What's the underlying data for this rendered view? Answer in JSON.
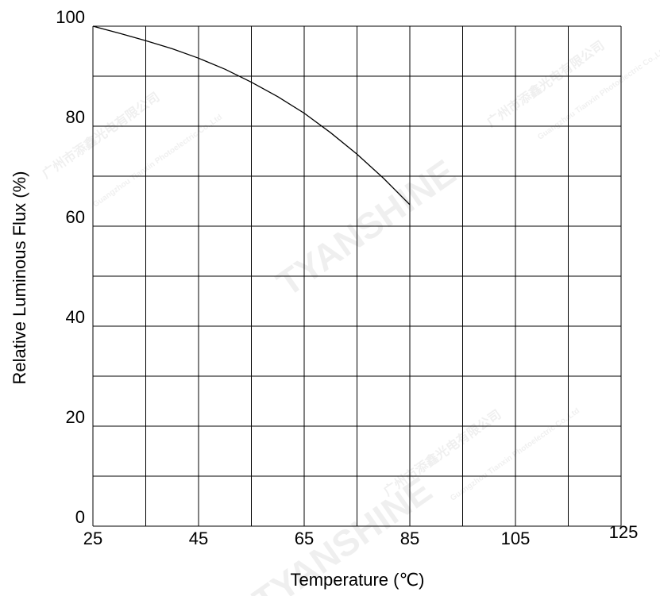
{
  "chart_data": {
    "type": "line",
    "title": "",
    "xlabel": "Temperature (℃)",
    "ylabel": "Relative Luminous Flux (%)",
    "xlim": [
      25,
      125
    ],
    "ylim": [
      0,
      100
    ],
    "x_ticks": [
      "25",
      "45",
      "65",
      "85",
      "105",
      "125"
    ],
    "y_ticks": [
      "0",
      "20",
      "40",
      "60",
      "80",
      "100"
    ],
    "grid": true,
    "series": [
      {
        "x": [
          25,
          30,
          35,
          40,
          45,
          50,
          55,
          60,
          65,
          70,
          75,
          80,
          85
        ],
        "y": [
          100,
          98.6,
          97.1,
          95.5,
          93.6,
          91.4,
          88.8,
          85.9,
          82.6,
          78.7,
          74.4,
          69.6,
          64.3
        ]
      }
    ],
    "line_color": "#000000",
    "grid_color": "#000000"
  },
  "watermarks": [
    "TYANSHINE",
    "TYANSHINE",
    "广州市添鑫光电有限公司",
    "Guangzhou Tianxin Photoelectric Co.,Ltd",
    "广州市添鑫光电有限公司",
    "Guangzhou Tianxin Photoelectric Co.,Ltd",
    "广州市添鑫光电有限公司",
    "Guangzhou Tianxin Photoelectric Co.,Ltd"
  ]
}
